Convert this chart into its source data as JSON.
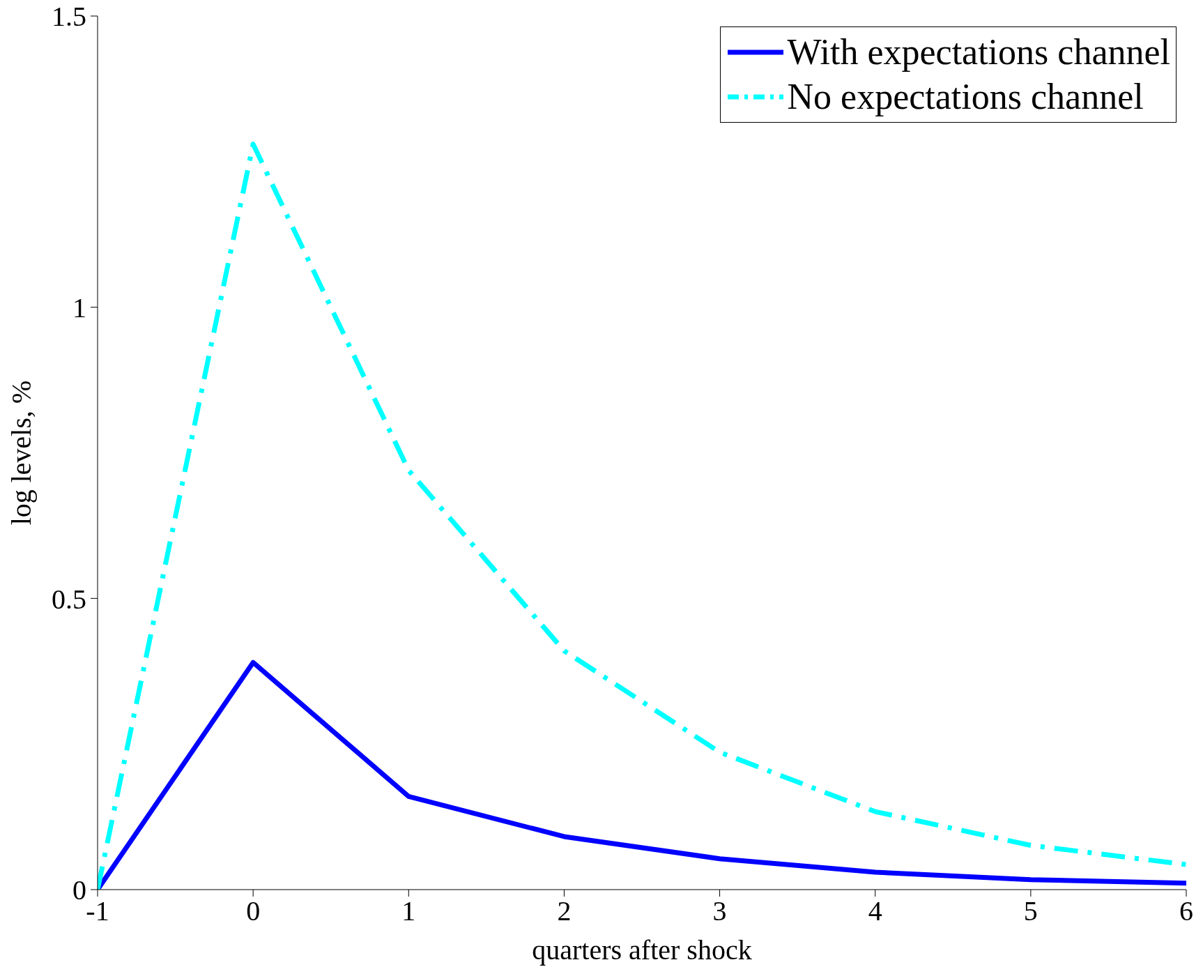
{
  "chart_data": {
    "type": "line",
    "xlabel": "quarters after shock",
    "ylabel": "log levels, %",
    "x": [
      -1,
      0,
      1,
      2,
      3,
      4,
      5,
      6
    ],
    "series": [
      {
        "name": "With expectations channel",
        "color": "#0000ff",
        "line_style": "solid",
        "values": [
          0,
          0.39,
          0.16,
          0.091,
          0.053,
          0.03,
          0.017,
          0.011
        ]
      },
      {
        "name": "No expectations channel",
        "color": "#00ffff",
        "line_style": "dashed",
        "values": [
          0,
          1.28,
          0.72,
          0.41,
          0.236,
          0.134,
          0.076,
          0.043
        ]
      }
    ],
    "xlim": [
      -1,
      6
    ],
    "xticks": [
      -1,
      0,
      1,
      2,
      3,
      4,
      5,
      6
    ],
    "ylim": [
      0,
      1.5
    ],
    "yticks": [
      0,
      0.5,
      1,
      1.5
    ],
    "grid": false,
    "legend": "top right",
    "marker": "none"
  }
}
